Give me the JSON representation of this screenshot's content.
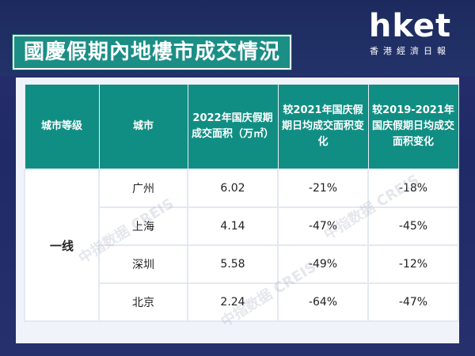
{
  "title": "國慶假期內地樓市成交情況",
  "logo": {
    "word": "hket",
    "subtitle": "香港經濟日報"
  },
  "table": {
    "headers": [
      "城市等级",
      "城市",
      "2022年国庆假期成交面积（万㎡）",
      "较2021年国庆假期日均成交面积变化",
      "较2019-2021年国庆假期日均成交面积变化"
    ],
    "tier": "一线",
    "rows": [
      {
        "city": "广州",
        "area": "6.02",
        "vs2021": "-21%",
        "vs2019_2021": "-18%"
      },
      {
        "city": "上海",
        "area": "4.14",
        "vs2021": "-47%",
        "vs2019_2021": "-45%"
      },
      {
        "city": "深圳",
        "area": "5.58",
        "vs2021": "-49%",
        "vs2019_2021": "-12%"
      },
      {
        "city": "北京",
        "area": "2.24",
        "vs2021": "-64%",
        "vs2019_2021": "-47%"
      }
    ]
  },
  "watermark": "中指数据 CREIS"
}
